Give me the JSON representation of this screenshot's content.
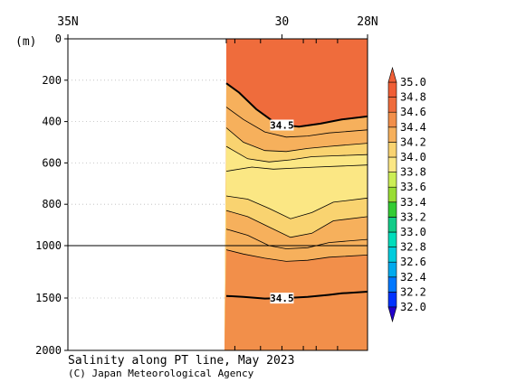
{
  "chart_data": {
    "type": "heatmap",
    "title": "Salinity along PT line, May 2023",
    "credit": "(C) Japan Meteorological Agency",
    "y_unit_label": "(m)",
    "x_tick_labels": [
      "35N",
      "30",
      "28N"
    ],
    "x_ticks_lat": [
      35,
      30,
      28
    ],
    "x_minor_ticks_lat": [
      31.1,
      30.5,
      29.5,
      29.2,
      28.7
    ],
    "x_range_lat": [
      35,
      28
    ],
    "data_start_lat": 31.3,
    "y_range_m": [
      0,
      2000
    ],
    "y_scale_break_m": 1000,
    "y_tick_labels": [
      "0",
      "200",
      "400",
      "600",
      "800",
      "1000",
      "1500",
      "2000"
    ],
    "y_ticks_m": [
      0,
      200,
      400,
      600,
      800,
      1000,
      1500,
      2000
    ],
    "colorbar": {
      "levels": [
        32.0,
        32.2,
        32.4,
        32.6,
        32.8,
        33.0,
        33.2,
        33.4,
        33.6,
        33.8,
        34.0,
        34.2,
        34.4,
        34.6,
        34.8,
        35.0
      ],
      "labels": [
        "32.0",
        "32.2",
        "32.4",
        "32.6",
        "32.8",
        "33.0",
        "33.2",
        "33.4",
        "33.6",
        "33.8",
        "34.0",
        "34.2",
        "34.4",
        "34.6",
        "34.8",
        "35.0"
      ],
      "colors": [
        "#2200cc",
        "#0033ff",
        "#0077ff",
        "#00aaee",
        "#00ccdd",
        "#00ddbb",
        "#11cc88",
        "#33cc33",
        "#99dd33",
        "#ccee55",
        "#fbe784",
        "#f9d370",
        "#f6b05c",
        "#f28f4a",
        "#ef6c3c",
        "#f05e36"
      ]
    },
    "contour_label": "34.5",
    "contours": [
      {
        "value": 34.5,
        "bold": true,
        "label_at_lat": 30.0,
        "points": [
          [
            31.3,
            215
          ],
          [
            31.0,
            260
          ],
          [
            30.6,
            340
          ],
          [
            30.1,
            415
          ],
          [
            29.6,
            425
          ],
          [
            29.1,
            410
          ],
          [
            28.6,
            390
          ],
          [
            28.0,
            375
          ]
        ]
      },
      {
        "value": 34.4,
        "bold": false,
        "points": [
          [
            31.3,
            330
          ],
          [
            30.9,
            390
          ],
          [
            30.4,
            450
          ],
          [
            29.9,
            475
          ],
          [
            29.4,
            470
          ],
          [
            28.9,
            455
          ],
          [
            28.0,
            440
          ]
        ]
      },
      {
        "value": 34.2,
        "bold": false,
        "points": [
          [
            31.3,
            430
          ],
          [
            30.9,
            500
          ],
          [
            30.4,
            540
          ],
          [
            29.9,
            545
          ],
          [
            29.4,
            530
          ],
          [
            28.9,
            520
          ],
          [
            28.0,
            505
          ]
        ]
      },
      {
        "value": 34.0,
        "bold": false,
        "points": [
          [
            31.3,
            520
          ],
          [
            30.8,
            580
          ],
          [
            30.3,
            595
          ],
          [
            29.8,
            585
          ],
          [
            29.3,
            570
          ],
          [
            28.7,
            565
          ],
          [
            28.0,
            560
          ]
        ]
      },
      {
        "value": 34.0,
        "bold": false,
        "points": [
          [
            31.3,
            640
          ],
          [
            30.7,
            620
          ],
          [
            30.2,
            630
          ],
          [
            29.7,
            625
          ],
          [
            29.2,
            620
          ],
          [
            28.0,
            610
          ]
        ]
      },
      {
        "value": 34.0,
        "bold": false,
        "points": [
          [
            31.3,
            760
          ],
          [
            30.8,
            775
          ],
          [
            30.3,
            820
          ],
          [
            29.8,
            870
          ],
          [
            29.3,
            840
          ],
          [
            28.8,
            790
          ],
          [
            28.0,
            770
          ]
        ]
      },
      {
        "value": 34.2,
        "bold": false,
        "points": [
          [
            31.3,
            830
          ],
          [
            30.8,
            860
          ],
          [
            30.3,
            910
          ],
          [
            29.8,
            960
          ],
          [
            29.3,
            940
          ],
          [
            28.8,
            880
          ],
          [
            28.0,
            860
          ]
        ]
      },
      {
        "value": 34.4,
        "bold": false,
        "points": [
          [
            31.3,
            920
          ],
          [
            30.8,
            950
          ],
          [
            30.3,
            1000
          ],
          [
            29.9,
            1030
          ],
          [
            29.4,
            1020
          ],
          [
            28.9,
            985
          ],
          [
            28.0,
            970
          ]
        ]
      },
      {
        "value": 34.5,
        "bold": false,
        "points": [
          [
            31.3,
            1040
          ],
          [
            30.9,
            1080
          ],
          [
            30.4,
            1120
          ],
          [
            29.9,
            1150
          ],
          [
            29.4,
            1140
          ],
          [
            28.9,
            1110
          ],
          [
            28.0,
            1090
          ]
        ]
      },
      {
        "value": 34.5,
        "bold": true,
        "label_at_lat": 30.0,
        "points": [
          [
            31.3,
            1480
          ],
          [
            30.9,
            1490
          ],
          [
            30.4,
            1505
          ],
          [
            29.9,
            1500
          ],
          [
            29.4,
            1490
          ],
          [
            28.9,
            1470
          ],
          [
            28.6,
            1455
          ],
          [
            28.0,
            1440
          ]
        ]
      }
    ]
  }
}
